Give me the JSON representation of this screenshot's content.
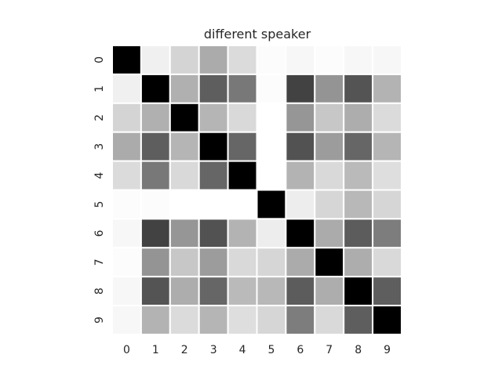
{
  "chart_data": {
    "type": "heatmap",
    "title": "different speaker",
    "x_categories": [
      "0",
      "1",
      "2",
      "3",
      "4",
      "5",
      "6",
      "7",
      "8",
      "9"
    ],
    "y_categories": [
      "0",
      "1",
      "2",
      "3",
      "4",
      "5",
      "6",
      "7",
      "8",
      "9"
    ],
    "colormap": "white-to-black",
    "grid_line_color": "#ffffff",
    "values": [
      [
        1.0,
        0.06,
        0.17,
        0.33,
        0.14,
        0.01,
        0.03,
        0.01,
        0.03,
        0.03
      ],
      [
        0.06,
        1.0,
        0.31,
        0.63,
        0.53,
        0.01,
        0.74,
        0.42,
        0.67,
        0.3
      ],
      [
        0.17,
        0.31,
        1.0,
        0.29,
        0.15,
        0.0,
        0.41,
        0.22,
        0.32,
        0.14
      ],
      [
        0.33,
        0.63,
        0.29,
        1.0,
        0.6,
        0.0,
        0.68,
        0.39,
        0.6,
        0.29
      ],
      [
        0.14,
        0.53,
        0.15,
        0.6,
        1.0,
        0.0,
        0.3,
        0.15,
        0.27,
        0.13
      ],
      [
        0.01,
        0.01,
        0.0,
        0.0,
        0.0,
        1.0,
        0.07,
        0.16,
        0.28,
        0.16
      ],
      [
        0.03,
        0.74,
        0.41,
        0.68,
        0.3,
        0.07,
        1.0,
        0.33,
        0.64,
        0.51
      ],
      [
        0.01,
        0.42,
        0.22,
        0.39,
        0.15,
        0.16,
        0.33,
        1.0,
        0.32,
        0.15
      ],
      [
        0.03,
        0.67,
        0.32,
        0.6,
        0.27,
        0.28,
        0.64,
        0.32,
        1.0,
        0.63
      ],
      [
        0.03,
        0.3,
        0.14,
        0.29,
        0.13,
        0.16,
        0.51,
        0.15,
        0.63,
        1.0
      ]
    ]
  }
}
